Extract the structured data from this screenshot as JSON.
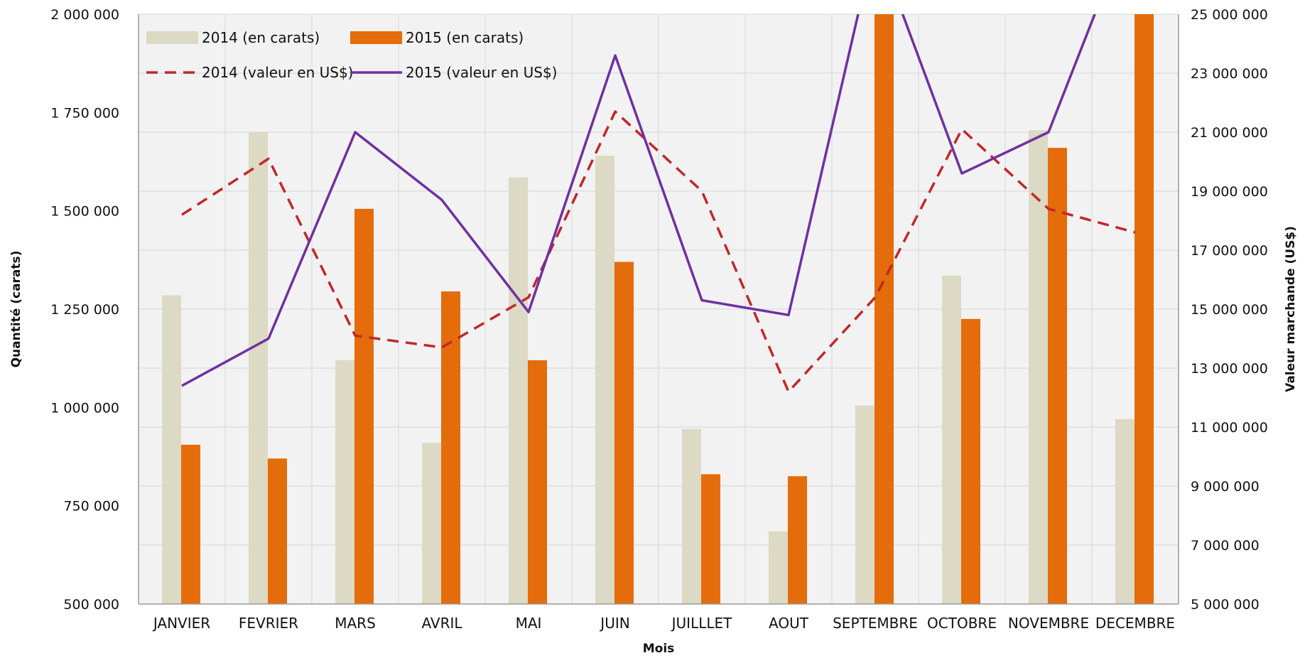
{
  "chart_data": {
    "type": "bar",
    "title": "",
    "xlabel": "Mois",
    "ylabel": "Quantité  (carats)",
    "y2label": "Valeur marchande (US$)",
    "ylim": [
      500000,
      2000000
    ],
    "y2lim": [
      5000000,
      25000000
    ],
    "yticks": [
      "500 000",
      "750 000",
      "1 000 000",
      "1 250 000",
      "1 500 000",
      "1 750 000",
      "2 000 000"
    ],
    "y2ticks": [
      "5 000 000",
      "7 000 000",
      "9 000 000",
      "11 000 000",
      "13 000 000",
      "15 000 000",
      "17 000 000",
      "19 000 000",
      "21 000 000",
      "23 000 000",
      "25 000 000"
    ],
    "categories": [
      "JANVIER",
      "FEVRIER",
      "MARS",
      "AVRIL",
      "MAI",
      "JUIN",
      "JUILLLET",
      "AOUT",
      "SEPTEMBRE",
      "OCTOBRE",
      "NOVEMBRE",
      "DECEMBRE"
    ],
    "grid": true,
    "legend_position": "top-left",
    "series": [
      {
        "name": "2014  (en carats)",
        "type": "bar",
        "axis": "left",
        "color": "#dcd9c4",
        "values": [
          1285000,
          1700000,
          1120000,
          910000,
          1585000,
          1640000,
          945000,
          685000,
          1005000,
          1335000,
          1705000,
          970000
        ]
      },
      {
        "name": "2015 (en carats)",
        "type": "bar",
        "axis": "left",
        "color": "#e46c0a",
        "values": [
          905000,
          870000,
          1505000,
          1295000,
          1120000,
          1370000,
          830000,
          825000,
          2000000,
          1225000,
          1660000,
          2000000
        ]
      },
      {
        "name": "2014 (valeur en US$)",
        "type": "line",
        "dash": true,
        "axis": "right",
        "color": "#c0282a",
        "values": [
          18200000,
          20100000,
          14100000,
          13700000,
          15400000,
          21700000,
          19000000,
          12200000,
          15400000,
          21100000,
          18400000,
          17600000
        ]
      },
      {
        "name": "2015 (valeur en US$)",
        "type": "line",
        "dash": false,
        "axis": "right",
        "color": "#7030a0",
        "values": [
          12400000,
          14000000,
          21000000,
          18700000,
          14900000,
          23600000,
          15300000,
          14800000,
          27500000,
          19600000,
          21000000,
          28500000
        ]
      }
    ]
  }
}
